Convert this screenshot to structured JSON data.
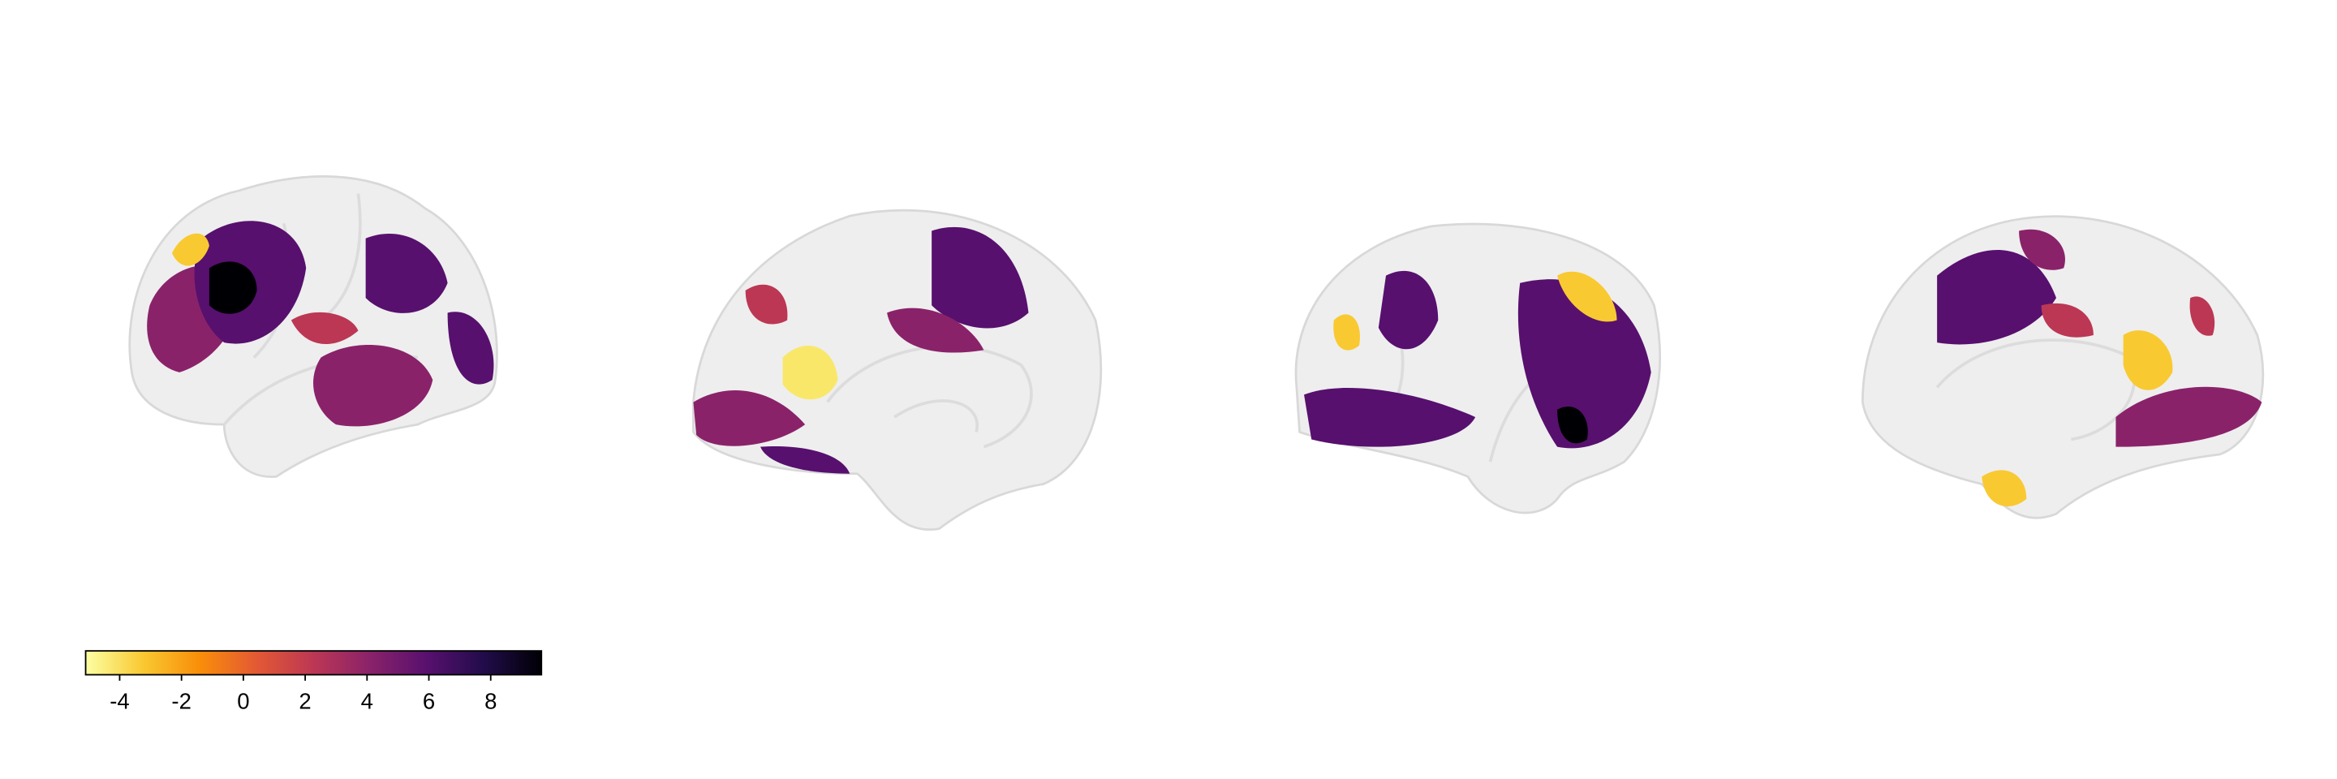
{
  "chart_data": {
    "type": "colorbar",
    "colors": [
      "#fcffa4",
      "#f9c932",
      "#f98e09",
      "#e35933",
      "#bc3754",
      "#8a226a",
      "#57106e",
      "#210c4a",
      "#000004"
    ],
    "xlim": [
      -5.1,
      9.64
    ],
    "xticks": [
      -4,
      -2,
      0,
      2,
      4,
      6,
      8
    ]
  }
}
